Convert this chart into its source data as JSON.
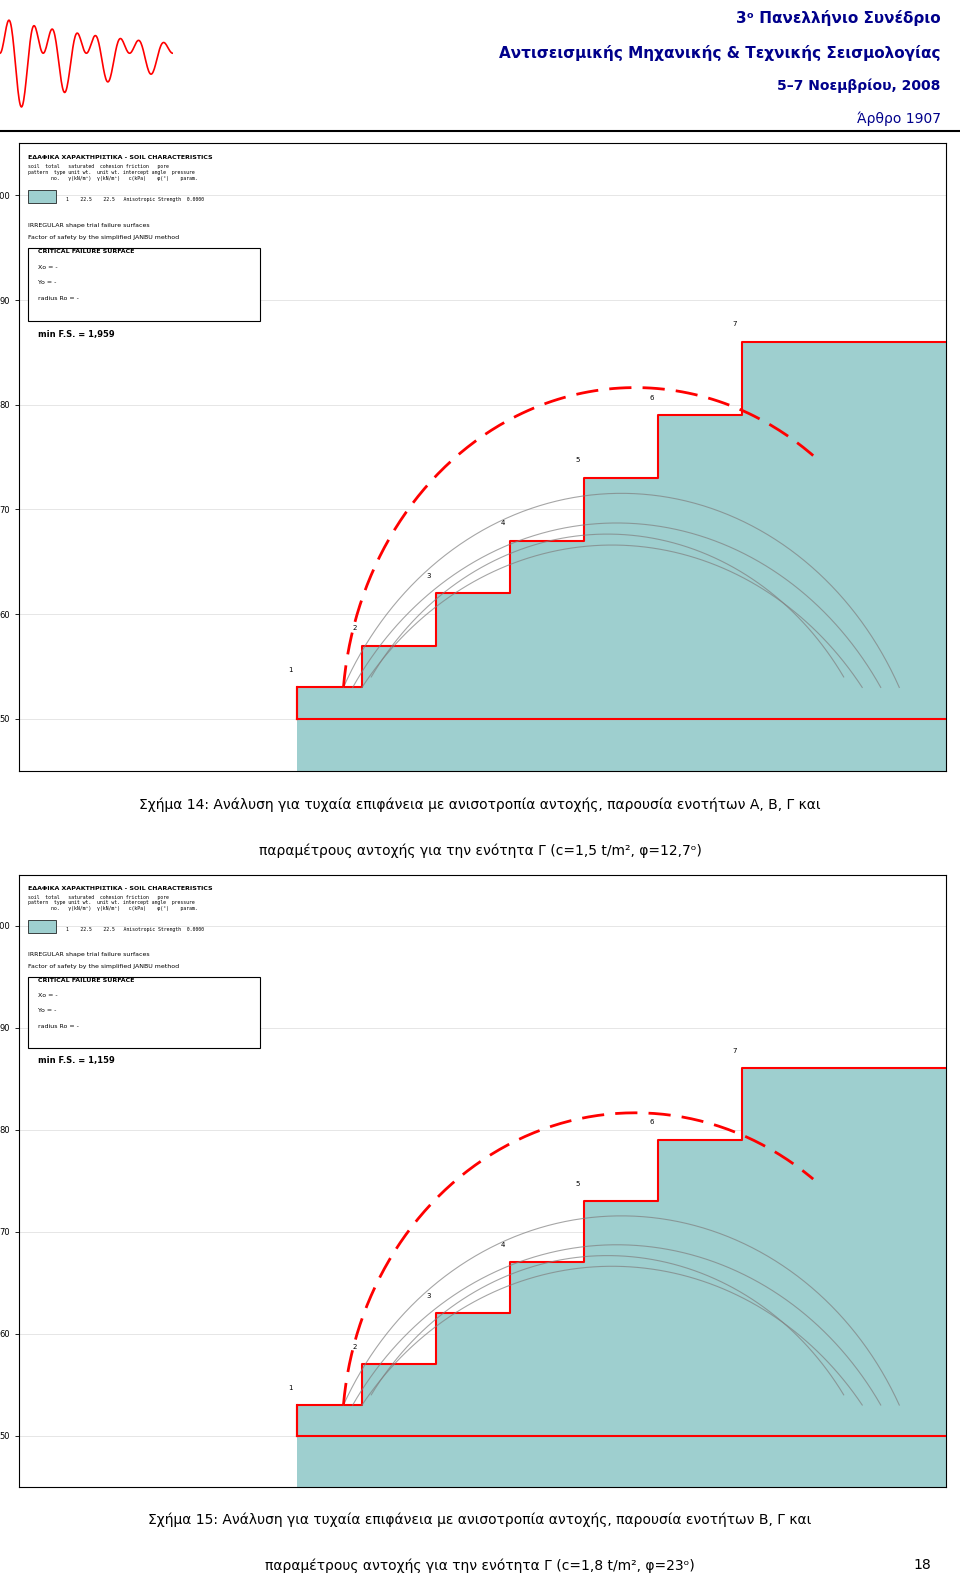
{
  "page_width": 9.6,
  "page_height": 15.9,
  "bg_color": "#ffffff",
  "header": {
    "title_line1": "3ᵒ Πανελλήνιο Συνέδριο",
    "title_line2": "Αντισεισμικής Μηχανικής & Τεχνικής Σεισμολογίας",
    "title_line3": "5–7 Νοεμβρίου, 2008",
    "title_line4": "Άρθρο 1907",
    "color": "#00008B",
    "fontsize": 11
  },
  "caption1": "Σχήμα 14: Ανάλυση για τυχαία επιφάνεια με ανισοτροπία αντοχής, παρουσία ενοτήτων Α, Β, Γ και",
  "caption1_line2": "παραμέτρους αντοχής για την ενότητα Γ (c=1,5 t/m², φ=12,7ᵒ)",
  "caption2": "Σχήμα 15: Ανάλυση για τυχαία επιφάνεια με ανισοτροπία αντοχής, παρουσία ενοτήτων Β, Γ και",
  "caption2_line2": "παραμέτρους αντοχής για την ενότητα Γ (c=1,8 t/m², φ=23ᵒ)",
  "page_number": "18",
  "soil_color": "#9ECFCF",
  "slope_outline_color": "#FF0000",
  "failure_surface_color": "#FF0000",
  "trial_surface_color": "#808080",
  "fs1": "1,959",
  "fs2": "1,159"
}
